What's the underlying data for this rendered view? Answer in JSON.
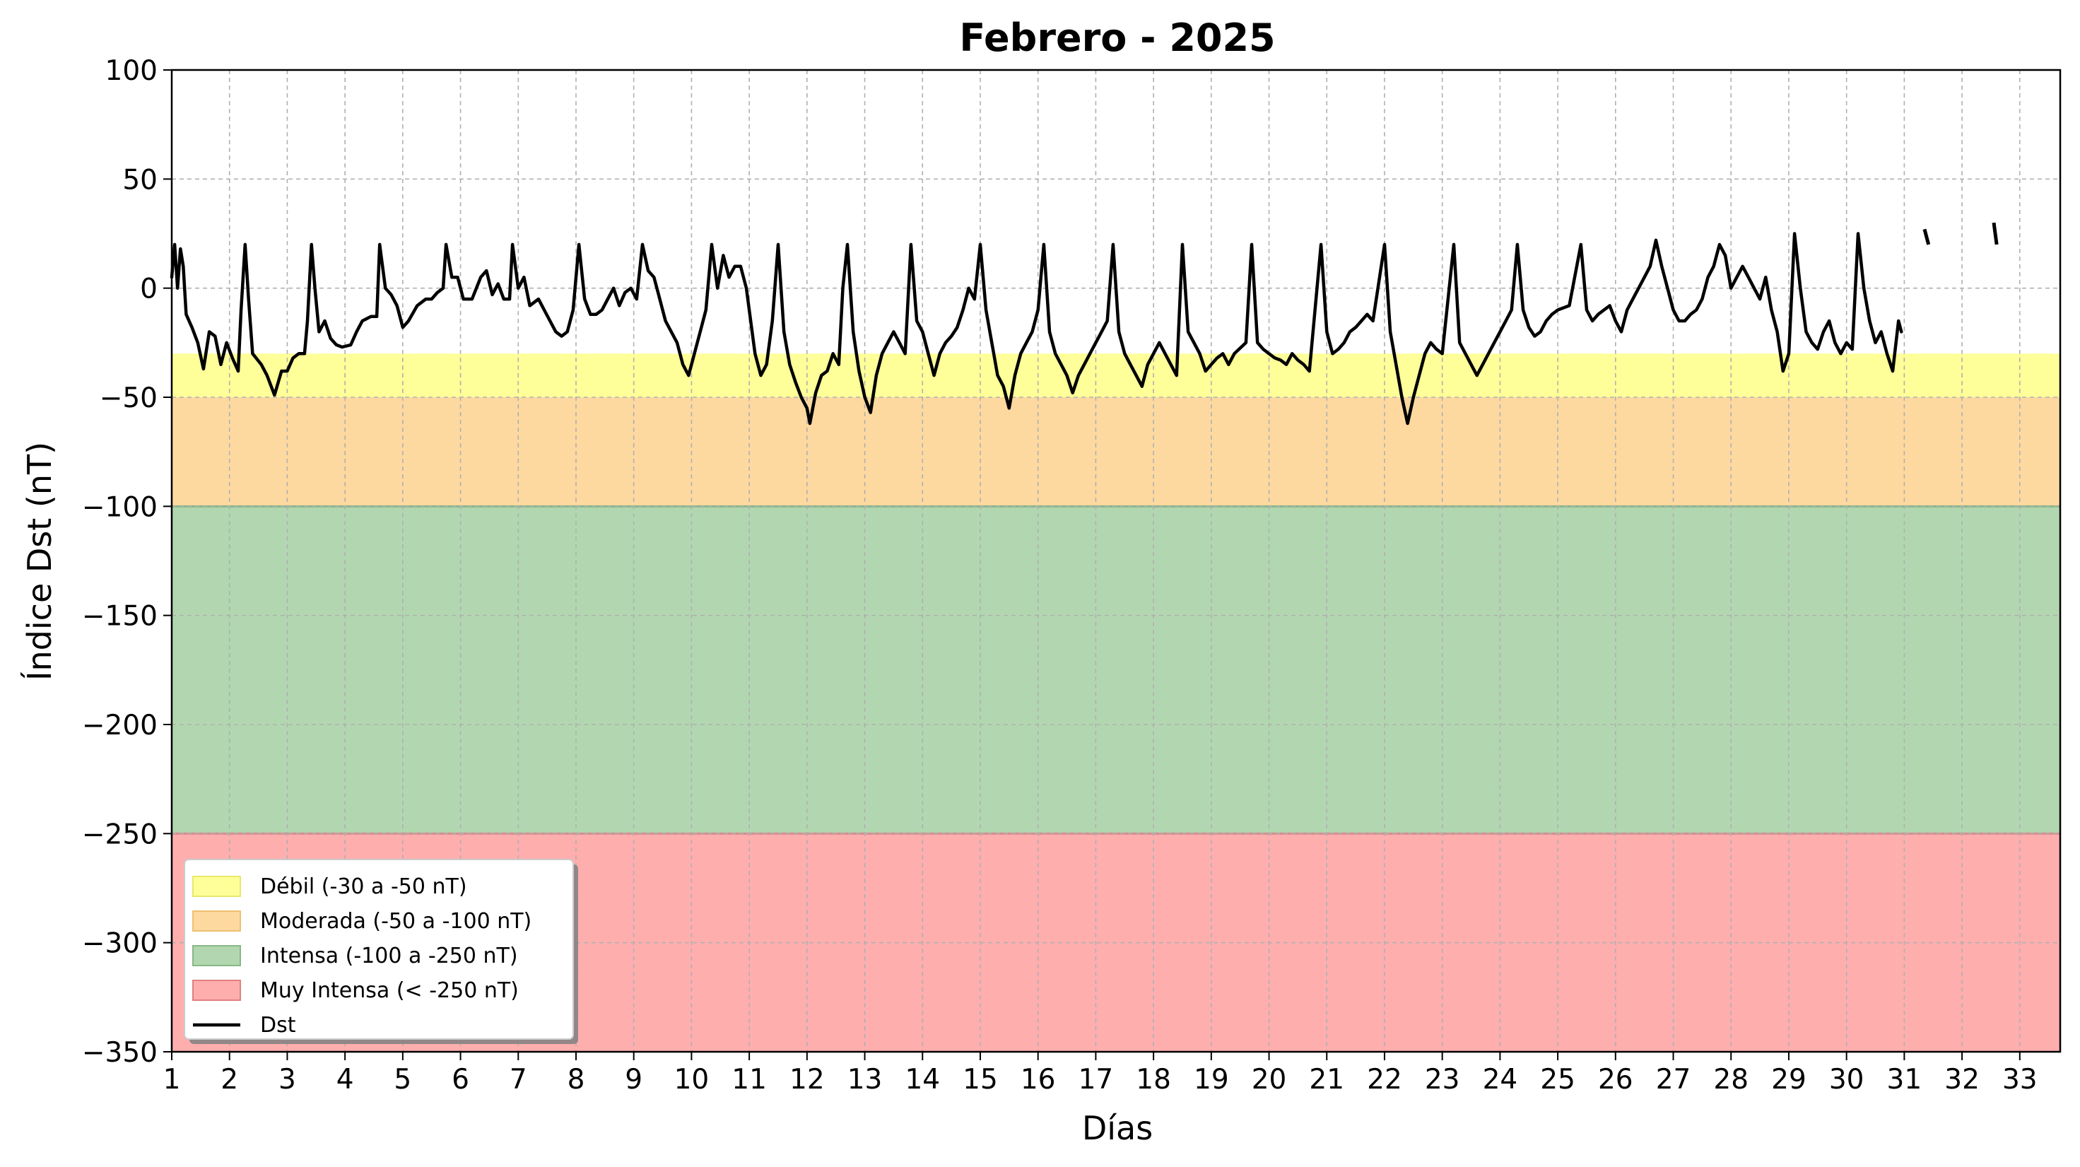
{
  "chart_data": {
    "type": "line",
    "title": "Febrero - 2025",
    "xlabel": "Días",
    "ylabel": "Índice Dst (nT)",
    "xlim": [
      1,
      33.7
    ],
    "ylim": [
      -350,
      100
    ],
    "xticks": [
      1,
      2,
      3,
      4,
      5,
      6,
      7,
      8,
      9,
      10,
      11,
      12,
      13,
      14,
      15,
      16,
      17,
      18,
      19,
      20,
      21,
      22,
      23,
      24,
      25,
      26,
      27,
      28,
      29,
      30,
      31,
      32,
      33
    ],
    "yticks": [
      100,
      50,
      0,
      -50,
      -100,
      -150,
      -200,
      -250,
      -300,
      -350
    ],
    "ytick_labels": [
      "100",
      "50",
      "0",
      "−50",
      "−100",
      "−150",
      "−200",
      "−250",
      "−300",
      "−350"
    ],
    "grid": true,
    "legend_position": "lower-left",
    "bands": [
      {
        "label": "Débil (-30 a -50 nT)",
        "from": -30,
        "to": -50,
        "color": "#ffff99"
      },
      {
        "label": "Moderada (-50 a -100 nT)",
        "from": -50,
        "to": -100,
        "color": "#fdd9a0"
      },
      {
        "label": "Intensa (-100 a -250 nT)",
        "from": -100,
        "to": -250,
        "color": "#b2d7b0"
      },
      {
        "label": "Muy Intensa (< -250 nT)",
        "from": -250,
        "to": -350,
        "color": "#ffaeae"
      }
    ],
    "series": [
      {
        "name": "Dst",
        "color": "#000000",
        "points": [
          [
            1.0,
            5
          ],
          [
            1.05,
            20
          ],
          [
            1.1,
            0
          ],
          [
            1.15,
            18
          ],
          [
            1.2,
            10
          ],
          [
            1.25,
            -12
          ],
          [
            1.35,
            -18
          ],
          [
            1.45,
            -25
          ],
          [
            1.55,
            -37
          ],
          [
            1.65,
            -20
          ],
          [
            1.75,
            -22
          ],
          [
            1.85,
            -35
          ],
          [
            1.95,
            -25
          ],
          [
            2.05,
            -32
          ],
          [
            2.15,
            -38
          ],
          [
            2.2,
            -10
          ],
          [
            2.27,
            20
          ],
          [
            2.33,
            -5
          ],
          [
            2.4,
            -30
          ],
          [
            2.55,
            -35
          ],
          [
            2.65,
            -40
          ],
          [
            2.78,
            -49
          ],
          [
            2.9,
            -38
          ],
          [
            3.0,
            -38
          ],
          [
            3.1,
            -32
          ],
          [
            3.2,
            -30
          ],
          [
            3.3,
            -30
          ],
          [
            3.35,
            -15
          ],
          [
            3.42,
            20
          ],
          [
            3.48,
            0
          ],
          [
            3.55,
            -20
          ],
          [
            3.65,
            -15
          ],
          [
            3.75,
            -23
          ],
          [
            3.85,
            -26
          ],
          [
            3.95,
            -27
          ],
          [
            4.1,
            -26
          ],
          [
            4.2,
            -20
          ],
          [
            4.3,
            -15
          ],
          [
            4.45,
            -13
          ],
          [
            4.55,
            -13
          ],
          [
            4.6,
            20
          ],
          [
            4.7,
            0
          ],
          [
            4.8,
            -3
          ],
          [
            4.9,
            -8
          ],
          [
            5.0,
            -18
          ],
          [
            5.1,
            -15
          ],
          [
            5.25,
            -8
          ],
          [
            5.4,
            -5
          ],
          [
            5.5,
            -5
          ],
          [
            5.6,
            -2
          ],
          [
            5.7,
            0
          ],
          [
            5.75,
            20
          ],
          [
            5.85,
            5
          ],
          [
            5.95,
            5
          ],
          [
            6.05,
            -5
          ],
          [
            6.2,
            -5
          ],
          [
            6.35,
            5
          ],
          [
            6.45,
            8
          ],
          [
            6.55,
            -3
          ],
          [
            6.65,
            2
          ],
          [
            6.75,
            -5
          ],
          [
            6.85,
            -5
          ],
          [
            6.9,
            20
          ],
          [
            7.0,
            0
          ],
          [
            7.1,
            5
          ],
          [
            7.2,
            -8
          ],
          [
            7.35,
            -5
          ],
          [
            7.45,
            -10
          ],
          [
            7.55,
            -15
          ],
          [
            7.65,
            -20
          ],
          [
            7.75,
            -22
          ],
          [
            7.85,
            -20
          ],
          [
            7.95,
            -10
          ],
          [
            8.05,
            20
          ],
          [
            8.15,
            -5
          ],
          [
            8.25,
            -12
          ],
          [
            8.35,
            -12
          ],
          [
            8.45,
            -10
          ],
          [
            8.55,
            -5
          ],
          [
            8.65,
            0
          ],
          [
            8.75,
            -8
          ],
          [
            8.85,
            -2
          ],
          [
            8.95,
            0
          ],
          [
            9.05,
            -5
          ],
          [
            9.15,
            20
          ],
          [
            9.25,
            8
          ],
          [
            9.35,
            5
          ],
          [
            9.45,
            -5
          ],
          [
            9.55,
            -15
          ],
          [
            9.65,
            -20
          ],
          [
            9.75,
            -25
          ],
          [
            9.85,
            -35
          ],
          [
            9.95,
            -40
          ],
          [
            10.05,
            -30
          ],
          [
            10.15,
            -20
          ],
          [
            10.25,
            -10
          ],
          [
            10.35,
            20
          ],
          [
            10.45,
            0
          ],
          [
            10.55,
            15
          ],
          [
            10.65,
            5
          ],
          [
            10.75,
            10
          ],
          [
            10.85,
            10
          ],
          [
            10.95,
            0
          ],
          [
            11.0,
            -10
          ],
          [
            11.1,
            -30
          ],
          [
            11.2,
            -40
          ],
          [
            11.3,
            -35
          ],
          [
            11.4,
            -15
          ],
          [
            11.5,
            20
          ],
          [
            11.6,
            -20
          ],
          [
            11.7,
            -35
          ],
          [
            11.8,
            -43
          ],
          [
            11.9,
            -50
          ],
          [
            12.0,
            -55
          ],
          [
            12.05,
            -62
          ],
          [
            12.15,
            -48
          ],
          [
            12.25,
            -40
          ],
          [
            12.35,
            -38
          ],
          [
            12.45,
            -30
          ],
          [
            12.55,
            -35
          ],
          [
            12.62,
            0
          ],
          [
            12.7,
            20
          ],
          [
            12.8,
            -20
          ],
          [
            12.9,
            -38
          ],
          [
            13.0,
            -50
          ],
          [
            13.1,
            -57
          ],
          [
            13.2,
            -40
          ],
          [
            13.3,
            -30
          ],
          [
            13.4,
            -25
          ],
          [
            13.5,
            -20
          ],
          [
            13.6,
            -25
          ],
          [
            13.7,
            -30
          ],
          [
            13.8,
            20
          ],
          [
            13.9,
            -15
          ],
          [
            14.0,
            -20
          ],
          [
            14.1,
            -30
          ],
          [
            14.2,
            -40
          ],
          [
            14.3,
            -30
          ],
          [
            14.4,
            -25
          ],
          [
            14.5,
            -22
          ],
          [
            14.6,
            -18
          ],
          [
            14.7,
            -10
          ],
          [
            14.8,
            0
          ],
          [
            14.9,
            -5
          ],
          [
            15.0,
            20
          ],
          [
            15.1,
            -10
          ],
          [
            15.2,
            -25
          ],
          [
            15.3,
            -40
          ],
          [
            15.4,
            -45
          ],
          [
            15.5,
            -55
          ],
          [
            15.6,
            -40
          ],
          [
            15.7,
            -30
          ],
          [
            15.8,
            -25
          ],
          [
            15.9,
            -20
          ],
          [
            16.0,
            -10
          ],
          [
            16.1,
            20
          ],
          [
            16.2,
            -20
          ],
          [
            16.3,
            -30
          ],
          [
            16.4,
            -35
          ],
          [
            16.5,
            -40
          ],
          [
            16.6,
            -48
          ],
          [
            16.7,
            -40
          ],
          [
            16.8,
            -35
          ],
          [
            16.9,
            -30
          ],
          [
            17.0,
            -25
          ],
          [
            17.1,
            -20
          ],
          [
            17.2,
            -15
          ],
          [
            17.3,
            20
          ],
          [
            17.4,
            -20
          ],
          [
            17.5,
            -30
          ],
          [
            17.6,
            -35
          ],
          [
            17.7,
            -40
          ],
          [
            17.8,
            -45
          ],
          [
            17.9,
            -35
          ],
          [
            18.0,
            -30
          ],
          [
            18.1,
            -25
          ],
          [
            18.2,
            -30
          ],
          [
            18.3,
            -35
          ],
          [
            18.4,
            -40
          ],
          [
            18.5,
            20
          ],
          [
            18.6,
            -20
          ],
          [
            18.7,
            -25
          ],
          [
            18.8,
            -30
          ],
          [
            18.9,
            -38
          ],
          [
            19.0,
            -35
          ],
          [
            19.1,
            -32
          ],
          [
            19.2,
            -30
          ],
          [
            19.3,
            -35
          ],
          [
            19.4,
            -30
          ],
          [
            19.6,
            -25
          ],
          [
            19.7,
            20
          ],
          [
            19.8,
            -25
          ],
          [
            19.9,
            -28
          ],
          [
            20.0,
            -30
          ],
          [
            20.1,
            -32
          ],
          [
            20.2,
            -33
          ],
          [
            20.3,
            -35
          ],
          [
            20.4,
            -30
          ],
          [
            20.5,
            -33
          ],
          [
            20.6,
            -35
          ],
          [
            20.7,
            -38
          ],
          [
            20.9,
            20
          ],
          [
            21.0,
            -20
          ],
          [
            21.1,
            -30
          ],
          [
            21.2,
            -28
          ],
          [
            21.3,
            -25
          ],
          [
            21.4,
            -20
          ],
          [
            21.5,
            -18
          ],
          [
            21.6,
            -15
          ],
          [
            21.7,
            -12
          ],
          [
            21.8,
            -15
          ],
          [
            22.0,
            20
          ],
          [
            22.1,
            -20
          ],
          [
            22.2,
            -35
          ],
          [
            22.3,
            -50
          ],
          [
            22.4,
            -62
          ],
          [
            22.5,
            -50
          ],
          [
            22.6,
            -40
          ],
          [
            22.7,
            -30
          ],
          [
            22.8,
            -25
          ],
          [
            22.9,
            -28
          ],
          [
            23.0,
            -30
          ],
          [
            23.2,
            20
          ],
          [
            23.3,
            -25
          ],
          [
            23.4,
            -30
          ],
          [
            23.5,
            -35
          ],
          [
            23.6,
            -40
          ],
          [
            23.7,
            -35
          ],
          [
            23.8,
            -30
          ],
          [
            23.9,
            -25
          ],
          [
            24.0,
            -20
          ],
          [
            24.1,
            -15
          ],
          [
            24.2,
            -10
          ],
          [
            24.3,
            20
          ],
          [
            24.4,
            -10
          ],
          [
            24.5,
            -18
          ],
          [
            24.6,
            -22
          ],
          [
            24.7,
            -20
          ],
          [
            24.8,
            -15
          ],
          [
            24.9,
            -12
          ],
          [
            25.0,
            -10
          ],
          [
            25.2,
            -8
          ],
          [
            25.4,
            20
          ],
          [
            25.5,
            -10
          ],
          [
            25.6,
            -15
          ],
          [
            25.7,
            -12
          ],
          [
            25.8,
            -10
          ],
          [
            25.9,
            -8
          ],
          [
            26.0,
            -15
          ],
          [
            26.1,
            -20
          ],
          [
            26.2,
            -10
          ],
          [
            26.3,
            -5
          ],
          [
            26.4,
            0
          ],
          [
            26.5,
            5
          ],
          [
            26.6,
            10
          ],
          [
            26.7,
            22
          ],
          [
            26.8,
            10
          ],
          [
            26.9,
            0
          ],
          [
            27.0,
            -10
          ],
          [
            27.1,
            -15
          ],
          [
            27.2,
            -15
          ],
          [
            27.3,
            -12
          ],
          [
            27.4,
            -10
          ],
          [
            27.5,
            -5
          ],
          [
            27.6,
            5
          ],
          [
            27.7,
            10
          ],
          [
            27.8,
            20
          ],
          [
            27.9,
            15
          ],
          [
            28.0,
            0
          ],
          [
            28.1,
            5
          ],
          [
            28.2,
            10
          ],
          [
            28.3,
            5
          ],
          [
            28.4,
            0
          ],
          [
            28.5,
            -5
          ],
          [
            28.6,
            5
          ],
          [
            28.7,
            -10
          ],
          [
            28.8,
            -20
          ],
          [
            28.9,
            -38
          ],
          [
            29.0,
            -30
          ],
          [
            29.1,
            25
          ],
          [
            29.2,
            0
          ],
          [
            29.3,
            -20
          ],
          [
            29.4,
            -25
          ],
          [
            29.5,
            -28
          ],
          [
            29.6,
            -20
          ],
          [
            29.7,
            -15
          ],
          [
            29.8,
            -25
          ],
          [
            29.9,
            -30
          ],
          [
            30.0,
            -25
          ],
          [
            30.1,
            -28
          ],
          [
            30.2,
            25
          ],
          [
            30.3,
            0
          ],
          [
            30.4,
            -15
          ],
          [
            30.5,
            -25
          ],
          [
            30.6,
            -20
          ],
          [
            30.7,
            -30
          ],
          [
            30.8,
            -38
          ],
          [
            30.9,
            -15
          ],
          [
            30.95,
            -20
          ]
        ]
      }
    ],
    "extra_segments": [
      {
        "x1": 31.35,
        "y1": 27,
        "x2": 31.42,
        "y2": 20
      },
      {
        "x1": 32.55,
        "y1": 30,
        "x2": 32.6,
        "y2": 20
      }
    ]
  }
}
